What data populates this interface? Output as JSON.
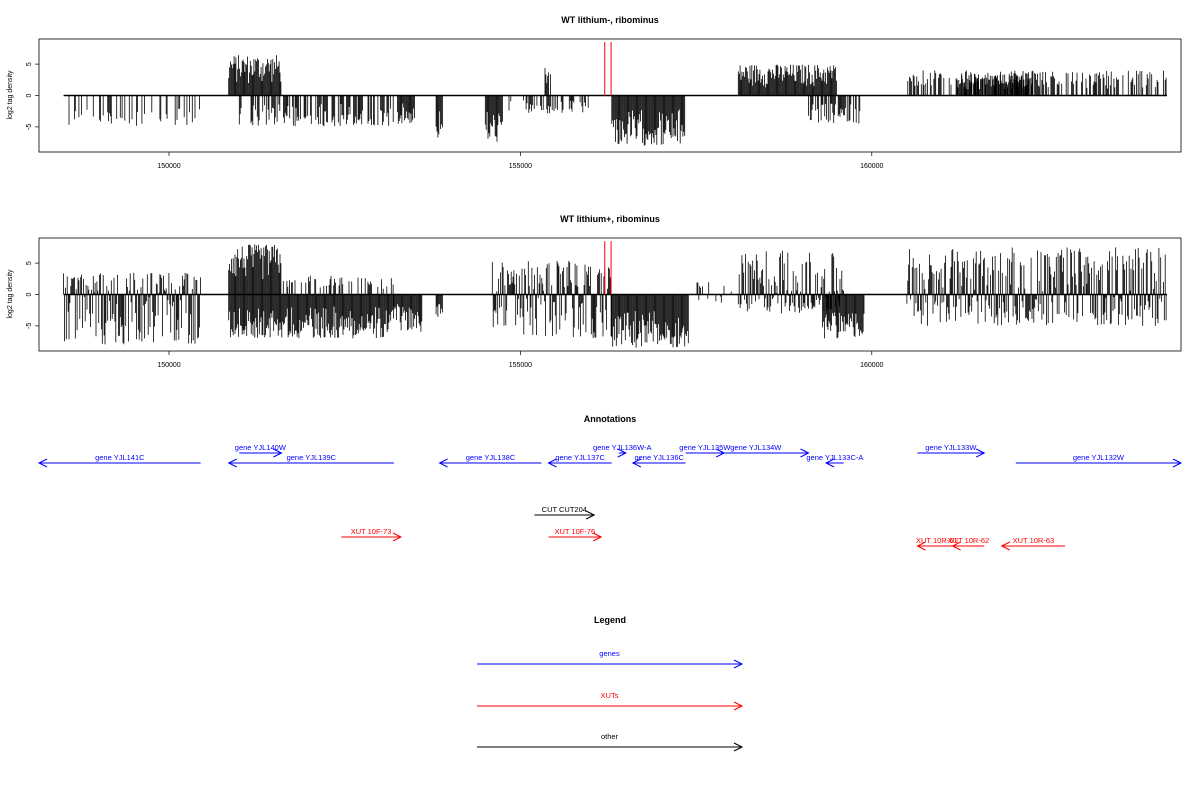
{
  "chart_data": [
    {
      "type": "bar",
      "title": "WT lithium-, ribominus",
      "xlabel": "",
      "ylabel": "log2 tag density",
      "xlim": [
        148150,
        164400
      ],
      "ylim": [
        -9,
        9
      ],
      "xticks": [
        "150000",
        "155000",
        "160000"
      ],
      "yticks": [
        "-5",
        "0",
        "5"
      ],
      "grid": false,
      "markers": [
        156200,
        156290
      ],
      "marker_color": "#ff0000",
      "density_segments": [
        {
          "from": 148500,
          "to": 150450,
          "min": -5,
          "max": 0,
          "density": 0.3
        },
        {
          "from": 150850,
          "to": 151600,
          "min": 0,
          "max": 6.5,
          "density": 1.0
        },
        {
          "from": 151000,
          "to": 153200,
          "min": -5,
          "max": 0,
          "density": 0.5
        },
        {
          "from": 153250,
          "to": 153500,
          "min": -4.5,
          "max": 0,
          "density": 1.0
        },
        {
          "from": 153800,
          "to": 153900,
          "min": -7,
          "max": 0,
          "density": 1.0
        },
        {
          "from": 154500,
          "to": 154750,
          "min": -7.5,
          "max": 0,
          "density": 1.0
        },
        {
          "from": 154800,
          "to": 156000,
          "min": -3,
          "max": 0,
          "density": 0.4
        },
        {
          "from": 155350,
          "to": 155450,
          "min": 0,
          "max": 4.5,
          "density": 0.8
        },
        {
          "from": 156300,
          "to": 157350,
          "min": -8,
          "max": 0,
          "density": 1.0
        },
        {
          "from": 158100,
          "to": 159500,
          "min": 0,
          "max": 5,
          "density": 1.0
        },
        {
          "from": 159100,
          "to": 159900,
          "min": -4.5,
          "max": 0,
          "density": 0.7
        },
        {
          "from": 160500,
          "to": 164200,
          "min": 0,
          "max": 4,
          "density": 0.5
        },
        {
          "from": 161200,
          "to": 162300,
          "min": 0,
          "max": 3.5,
          "density": 0.9
        }
      ]
    },
    {
      "type": "bar",
      "title": "WT lithium+, ribominus",
      "xlabel": "",
      "ylabel": "log2 tag density",
      "xlim": [
        148150,
        164400
      ],
      "ylim": [
        -9,
        9
      ],
      "xticks": [
        "150000",
        "155000",
        "160000"
      ],
      "yticks": [
        "-5",
        "0",
        "5"
      ],
      "grid": false,
      "markers": [
        156200,
        156290
      ],
      "marker_color": "#ff0000",
      "density_segments": [
        {
          "from": 148500,
          "to": 150450,
          "min": -8,
          "max": 3.5,
          "density": 1.0
        },
        {
          "from": 150850,
          "to": 151600,
          "min": 0,
          "max": 8,
          "density": 1.0
        },
        {
          "from": 150850,
          "to": 153200,
          "min": -7,
          "max": 0,
          "density": 1.0
        },
        {
          "from": 151600,
          "to": 153200,
          "min": 0,
          "max": 3,
          "density": 0.4
        },
        {
          "from": 153200,
          "to": 153600,
          "min": -6,
          "max": 0,
          "density": 1.0
        },
        {
          "from": 153800,
          "to": 153900,
          "min": -4,
          "max": 0,
          "density": 1.0
        },
        {
          "from": 154600,
          "to": 156300,
          "min": -7,
          "max": 5.5,
          "density": 1.0
        },
        {
          "from": 156300,
          "to": 157400,
          "min": -8.5,
          "max": 0,
          "density": 1.0
        },
        {
          "from": 157500,
          "to": 158000,
          "min": -2,
          "max": 2,
          "density": 0.2
        },
        {
          "from": 158100,
          "to": 159600,
          "min": -3,
          "max": 7,
          "density": 1.0
        },
        {
          "from": 159300,
          "to": 159900,
          "min": -7,
          "max": 0,
          "density": 1.0
        },
        {
          "from": 160500,
          "to": 164200,
          "min": -5,
          "max": 7.5,
          "density": 1.0
        }
      ]
    }
  ],
  "annotations": {
    "title": "Annotations",
    "rows": [
      {
        "y": 0,
        "features": [
          {
            "label": "gene YJL141C",
            "from": 148150,
            "to": 150450,
            "strand": "-",
            "color": "#0000ff"
          },
          {
            "label": "gene YJL139C",
            "from": 150850,
            "to": 153200,
            "strand": "-",
            "color": "#0000ff"
          },
          {
            "label": "gene YJL138C",
            "from": 153850,
            "to": 155300,
            "strand": "-",
            "color": "#0000ff"
          },
          {
            "label": "gene YJL137C",
            "from": 155400,
            "to": 156300,
            "strand": "-",
            "color": "#0000ff"
          },
          {
            "label": "gene YJL136C",
            "from": 156600,
            "to": 157350,
            "strand": "-",
            "color": "#0000ff"
          },
          {
            "label": "gene YJL133C-A",
            "from": 159350,
            "to": 159600,
            "strand": "-",
            "color": "#0000ff"
          },
          {
            "label": "gene YJL132W",
            "from": 162050,
            "to": 164400,
            "strand": "+",
            "color": "#0000ff"
          }
        ]
      },
      {
        "y": 1,
        "features": [
          {
            "label": "gene YJL140W",
            "from": 151000,
            "to": 151600,
            "strand": "+",
            "color": "#0000ff"
          },
          {
            "label": "gene YJL136W-A",
            "from": 156400,
            "to": 156500,
            "strand": "+",
            "color": "#0000ff"
          },
          {
            "label": "gene YJL135W",
            "from": 157350,
            "to": 157900,
            "strand": "+",
            "color": "#0000ff"
          },
          {
            "label": "gene YJL134W",
            "from": 157600,
            "to": 159100,
            "strand": "+",
            "color": "#0000ff"
          },
          {
            "label": "gene YJL133W",
            "from": 160650,
            "to": 161600,
            "strand": "+",
            "color": "#0000ff"
          }
        ]
      },
      {
        "y": 2,
        "features": [
          {
            "label": "CUT CUT204",
            "from": 155200,
            "to": 156050,
            "strand": "+",
            "color": "#000000"
          }
        ]
      },
      {
        "y": 3,
        "features": [
          {
            "label": "XUT 10F-73",
            "from": 152450,
            "to": 153300,
            "strand": "+",
            "color": "#ff0000"
          },
          {
            "label": "XUT 10F-76",
            "from": 155400,
            "to": 156150,
            "strand": "+",
            "color": "#ff0000"
          }
        ]
      },
      {
        "y": 4,
        "features": [
          {
            "label": "XUT 10R-61",
            "from": 160650,
            "to": 161200,
            "strand": "-",
            "color": "#ff0000"
          },
          {
            "label": "XUT 10R-62",
            "from": 161150,
            "to": 161600,
            "strand": "-",
            "color": "#ff0000"
          },
          {
            "label": "XUT 10R-63",
            "from": 161850,
            "to": 162750,
            "strand": "-",
            "color": "#ff0000"
          }
        ]
      }
    ]
  },
  "legend": {
    "title": "Legend",
    "entries": [
      {
        "label": "genes",
        "color": "#0000ff"
      },
      {
        "label": "XUTs",
        "color": "#ff0000"
      },
      {
        "label": "other",
        "color": "#000000"
      }
    ]
  }
}
